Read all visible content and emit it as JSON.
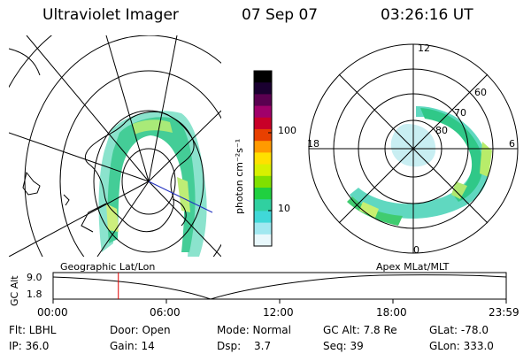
{
  "header": {
    "instrument": "Ultraviolet Imager",
    "date": "07 Sep 07",
    "time": "03:26:16 UT"
  },
  "colorbar": {
    "unit_label": "photon cm⁻²s⁻¹",
    "ticks": [
      "100",
      "10"
    ],
    "colors": [
      "#000000",
      "#1a0030",
      "#5a0050",
      "#a0006a",
      "#c80028",
      "#e84000",
      "#ff9a00",
      "#ffe000",
      "#d8f000",
      "#80e000",
      "#20d040",
      "#30d0a0",
      "#40d8d8",
      "#a0e8f0",
      "#e8f8fc"
    ]
  },
  "geo_panel": {
    "label": "Geographic Lat/Lon"
  },
  "mag_panel": {
    "label": "Apex  MLat/MLT",
    "mlt_labels": {
      "top": "12",
      "left": "18",
      "right": "6",
      "bottom": "0"
    },
    "lat_labels": [
      "60",
      "70",
      "80"
    ]
  },
  "altitude_plot": {
    "ylabel": "GC Alt",
    "yticks": [
      "9.0",
      "1.8"
    ],
    "xticks": [
      "00:00",
      "06:00",
      "12:00",
      "18:00",
      "23:59"
    ],
    "current_time_fraction": 0.144
  },
  "info": {
    "filter": "Flt: LBHL",
    "ip": "IP: 36.0",
    "door": "Door: Open",
    "gain": "Gain: 14",
    "mode": "Mode: Normal",
    "dsp_label": "Dsp:",
    "dsp_value": "3.7",
    "gc_alt": "GC Alt: 7.8 Re",
    "seq": "Seq: 39",
    "glat": "GLat: -78.0",
    "glon": "GLon: 333.0"
  }
}
